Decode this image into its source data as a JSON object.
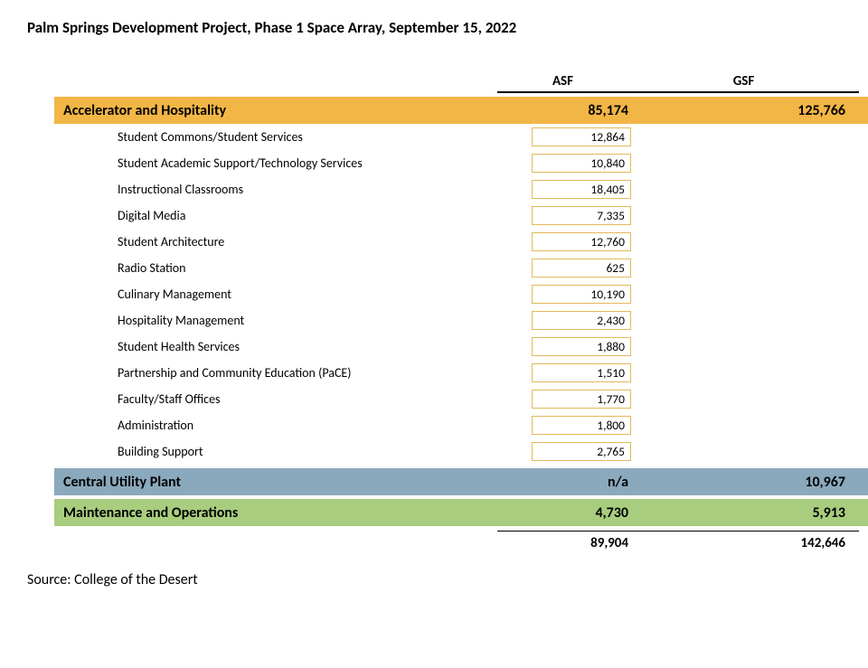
{
  "title": "Palm Springs Development Project, Phase 1 Space Array, September 15, 2022",
  "columns": {
    "asf": "ASF",
    "gsf": "GSF"
  },
  "sections": [
    {
      "name": "Accelerator and Hospitality",
      "asf": "85,174",
      "gsf": "125,766",
      "bg_color": "#f2b646",
      "items": [
        {
          "label": "Student Commons/Student Services",
          "asf": "12,864"
        },
        {
          "label": "Student Academic Support/Technology Services",
          "asf": "10,840"
        },
        {
          "label": "Instructional Classrooms",
          "asf": "18,405"
        },
        {
          "label": "Digital Media",
          "asf": "7,335"
        },
        {
          "label": "Student Architecture",
          "asf": "12,760"
        },
        {
          "label": "Radio Station",
          "asf": "625"
        },
        {
          "label": "Culinary Management",
          "asf": "10,190"
        },
        {
          "label": "Hospitality Management",
          "asf": "2,430"
        },
        {
          "label": "Student Health Services",
          "asf": "1,880"
        },
        {
          "label": "Partnership and Community Education (PaCE)",
          "asf": "1,510"
        },
        {
          "label": "Faculty/Staff Offices",
          "asf": "1,770"
        },
        {
          "label": "Administration",
          "asf": "1,800"
        },
        {
          "label": "Building Support",
          "asf": "2,765"
        }
      ]
    },
    {
      "name": "Central Utility Plant",
      "asf": "n/a",
      "gsf": "10,967",
      "bg_color": "#8ba9bd",
      "items": []
    },
    {
      "name": "Maintenance and Operations",
      "asf": "4,730",
      "gsf": "5,913",
      "bg_color": "#a9cd7e",
      "items": []
    }
  ],
  "totals": {
    "asf": "89,904",
    "gsf": "142,646"
  },
  "source": "Source: College of the Desert",
  "style": {
    "detail_box_border": "#e2b95a",
    "text_color": "#000000",
    "background": "#ffffff",
    "title_fontsize": 17,
    "section_fontsize": 16,
    "detail_fontsize": 14
  }
}
